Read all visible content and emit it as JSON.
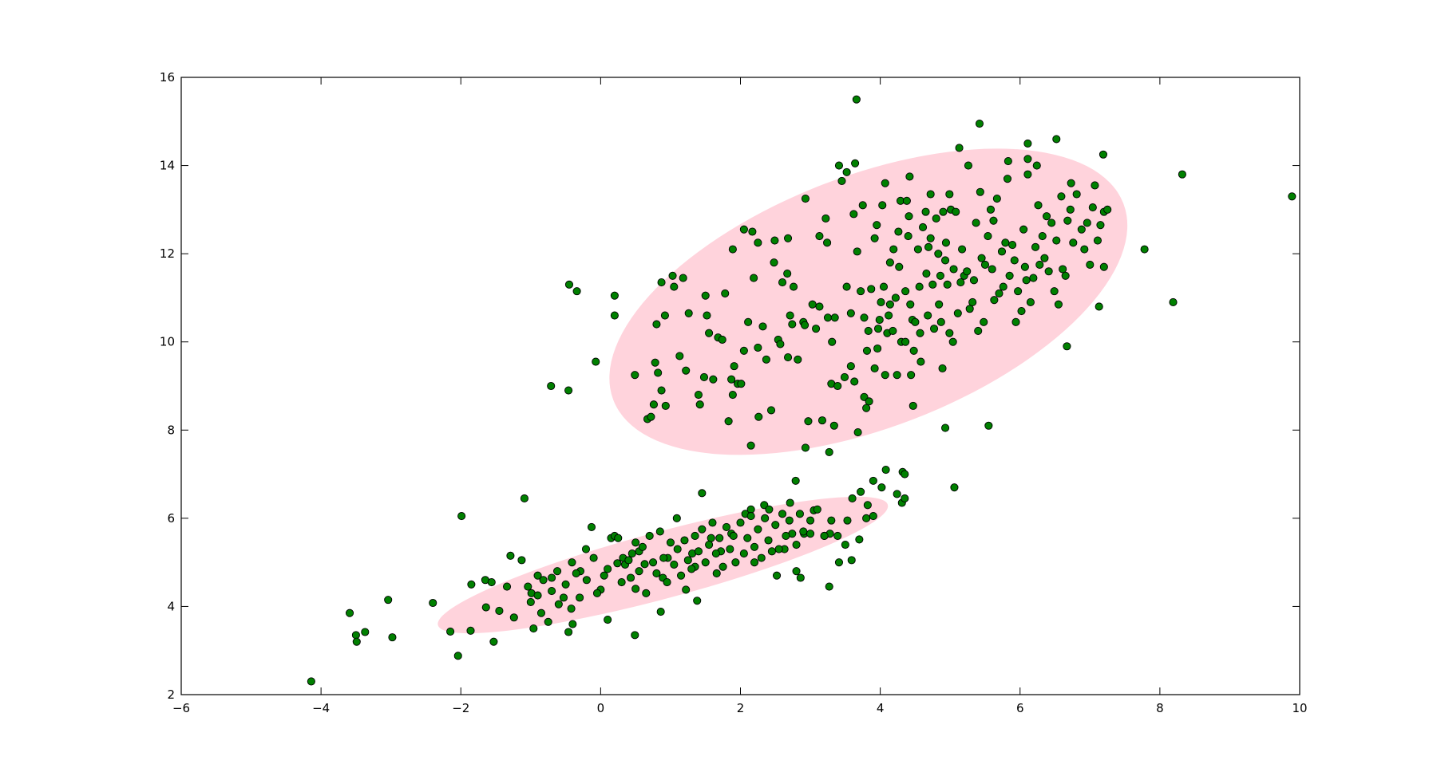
{
  "chart_data": {
    "type": "scatter",
    "color": "#008000",
    "edgecolor": "#000000",
    "ellipses": [
      {
        "center": [
          3.83,
          10.91
        ],
        "width": 8.8,
        "height": 5.07,
        "angle": 41.3,
        "color": "#ffd3dc"
      },
      {
        "center": [
          0.89,
          4.94
        ],
        "width": 7.0,
        "height": 1.44,
        "angle": 23.6,
        "color": "#ffd3dc"
      }
    ],
    "x": [
      -4.14,
      -3.59,
      -3.5,
      -3.49,
      -3.37,
      -3.04,
      -2.98,
      -2.4,
      -2.15,
      -2.04,
      -1.99,
      -1.86,
      -1.85,
      -1.65,
      -1.64,
      -1.53,
      -1.56,
      -1.45,
      -1.34,
      -1.29,
      -1.24,
      -1.13,
      -1.09,
      -1.04,
      -0.99,
      -0.96,
      -0.9,
      -0.82,
      -0.75,
      -0.71,
      -0.7,
      -0.62,
      -0.53,
      -0.46,
      -0.45,
      -0.42,
      -0.41,
      -0.34,
      -0.46,
      -0.29,
      -0.21,
      -0.13,
      -0.07,
      0,
      0.1,
      0.15,
      0.2,
      0.2,
      0.24,
      0.32,
      0.43,
      0.49,
      0.5,
      0.49,
      0.55,
      0.63,
      0.67,
      0.72,
      0.76,
      0.78,
      0.8,
      0.82,
      0.87,
      0.87,
      0.89,
      0.86,
      0.93,
      0.92,
      0.96,
      1.03,
      1.05,
      1.09,
      1.13,
      1.18,
      1.22,
      1.22,
      1.26,
      1.31,
      1.35,
      1.38,
      1.4,
      1.42,
      1.45,
      1.48,
      1.5,
      1.52,
      1.55,
      1.58,
      1.61,
      1.66,
      1.68,
      1.72,
      1.74,
      1.78,
      1.83,
      1.87,
      1.87,
      1.89,
      1.89,
      1.91,
      1.93,
      1.96,
      2.01,
      2.05,
      2.05,
      2.07,
      2.11,
      2.15,
      2.15,
      2.17,
      2.19,
      2.2,
      2.25,
      2.25,
      2.26,
      2.32,
      2.34,
      2.37,
      2.41,
      2.44,
      2.45,
      2.48,
      2.49,
      2.52,
      2.54,
      2.57,
      2.6,
      2.63,
      2.67,
      2.68,
      2.68,
      2.71,
      2.71,
      2.74,
      2.74,
      2.76,
      2.79,
      2.8,
      2.82,
      2.86,
      2.9,
      2.91,
      2.92,
      2.93,
      2.93,
      2.97,
      3.0,
      3.03,
      3.05,
      3.08,
      3.13,
      3.13,
      3.17,
      3.2,
      3.22,
      3.24,
      3.25,
      3.27,
      3.27,
      3.28,
      3.3,
      3.31,
      3.34,
      3.35,
      3.39,
      3.39,
      3.41,
      3.41,
      3.45,
      3.49,
      3.52,
      3.52,
      3.53,
      3.58,
      3.58,
      3.59,
      3.62,
      3.63,
      3.64,
      3.66,
      3.67,
      3.68,
      3.7,
      3.72,
      3.75,
      3.77,
      3.77,
      3.8,
      3.81,
      3.82,
      3.83,
      3.84,
      3.87,
      3.9,
      3.92,
      3.92,
      3.95,
      3.96,
      3.97,
      3.99,
      4.01,
      4.03,
      4.05,
      4.07,
      4.07,
      4.08,
      4.1,
      4.12,
      4.14,
      4.14,
      4.18,
      4.19,
      4.22,
      4.24,
      4.24,
      4.26,
      4.27,
      4.29,
      4.3,
      4.31,
      4.32,
      4.36,
      4.36,
      4.38,
      4.4,
      4.41,
      4.42,
      4.43,
      4.44,
      4.46,
      4.47,
      4.48,
      4.5,
      4.54,
      4.56,
      4.57,
      4.58,
      4.61,
      4.65,
      4.66,
      4.68,
      4.69,
      4.72,
      4.72,
      4.75,
      4.77,
      4.8,
      4.83,
      4.84,
      4.86,
      4.87,
      4.89,
      4.9,
      4.93,
      4.93,
      4.94,
      4.96,
      4.99,
      4.99,
      5.01,
      5.04,
      5.05,
      5.08,
      5.11,
      5.13,
      5.15,
      5.17,
      5.2,
      5.24,
      5.26,
      5.28,
      5.32,
      5.34,
      5.37,
      5.4,
      5.42,
      5.43,
      5.45,
      5.48,
      5.5,
      5.54,
      5.58,
      5.6,
      5.62,
      5.63,
      5.67,
      5.7,
      5.74,
      5.76,
      5.79,
      5.82,
      5.83,
      5.85,
      5.89,
      5.92,
      5.94,
      5.97,
      6.02,
      6.05,
      6.07,
      6.09,
      6.11,
      6.15,
      6.19,
      6.22,
      6.26,
      6.28,
      6.32,
      6.35,
      6.38,
      6.41,
      6.45,
      6.49,
      6.52,
      6.55,
      6.59,
      6.61,
      6.65,
      6.68,
      6.72,
      6.76,
      6.81,
      6.88,
      6.92,
      6.96,
      7.0,
      7.04,
      7.07,
      7.11,
      7.15,
      7.2,
      7.25,
      6.24,
      6.11,
      6.52,
      6.11,
      6.73,
      7.13,
      7.2,
      7.19,
      7.78,
      8.32,
      8.19,
      9.89,
      6.67,
      5.55,
      5.06,
      4.35,
      4.35,
      4.02,
      3.72,
      -1.0,
      -0.9,
      -0.85,
      -0.7,
      -0.6,
      -0.5,
      -0.4,
      -0.35,
      -0.3,
      -0.2,
      -0.1,
      -0.05,
      0.05,
      0.1,
      0.2,
      0.25,
      0.3,
      0.35,
      0.4,
      0.45,
      0.5,
      0.55,
      0.6,
      0.65,
      0.7,
      0.75,
      0.8,
      0.85,
      0.9,
      0.95,
      1.0,
      1.05,
      1.1,
      1.15,
      1.2,
      1.25,
      1.3,
      1.35,
      1.4,
      1.45,
      1.5,
      1.55,
      1.6,
      1.65,
      1.7,
      1.75,
      1.8,
      1.85,
      1.9,
      2.0,
      2.05,
      2.1,
      2.15,
      2.2,
      2.25,
      2.3,
      2.35,
      2.4,
      2.5,
      2.55,
      2.6,
      2.65,
      2.7,
      2.8,
      2.85,
      2.9,
      3.0,
      3.1,
      3.3,
      3.5,
      3.6,
      3.8,
      3.9,
      3.2
    ],
    "values": [
      2.3,
      3.85,
      3.35,
      3.2,
      3.42,
      4.15,
      3.3,
      4.08,
      3.43,
      2.88,
      6.05,
      3.45,
      4.5,
      4.6,
      3.98,
      3.2,
      4.55,
      3.9,
      4.45,
      5.15,
      3.75,
      5.05,
      6.45,
      4.45,
      4.3,
      3.5,
      4.7,
      4.6,
      3.65,
      9.0,
      4.35,
      4.8,
      4.2,
      3.42,
      11.3,
      3.95,
      5.0,
      11.15,
      8.9,
      4.8,
      5.3,
      5.8,
      9.55,
      4.38,
      3.7,
      5.55,
      11.05,
      10.6,
      4.98,
      5.1,
      4.65,
      9.25,
      5.45,
      3.35,
      5.25,
      4.96,
      8.25,
      8.3,
      8.58,
      9.53,
      10.4,
      9.3,
      11.35,
      8.9,
      4.65,
      3.88,
      8.55,
      10.6,
      5.1,
      11.5,
      11.25,
      6.0,
      9.68,
      11.45,
      4.38,
      9.35,
      10.65,
      5.2,
      4.9,
      4.13,
      8.8,
      8.58,
      6.57,
      9.2,
      11.05,
      10.6,
      10.2,
      5.55,
      9.15,
      4.75,
      10.1,
      5.25,
      10.05,
      11.1,
      8.2,
      9.15,
      5.65,
      12.1,
      8.8,
      9.45,
      5.0,
      9.05,
      9.05,
      12.55,
      9.8,
      6.1,
      10.45,
      7.65,
      6.2,
      12.5,
      11.45,
      5.0,
      12.25,
      9.87,
      8.3,
      10.35,
      6.3,
      9.6,
      6.2,
      8.45,
      5.25,
      11.8,
      12.3,
      4.7,
      10.05,
      9.95,
      11.35,
      5.3,
      11.55,
      12.35,
      9.65,
      10.6,
      6.35,
      10.4,
      5.65,
      11.25,
      6.85,
      4.8,
      9.6,
      4.65,
      10.45,
      5.65,
      10.38,
      13.25,
      7.6,
      8.2,
      5.65,
      10.85,
      6.18,
      10.3,
      10.8,
      12.4,
      8.22,
      5.6,
      12.8,
      12.25,
      10.55,
      7.5,
      4.45,
      5.65,
      9.05,
      10.0,
      8.1,
      10.55,
      5.6,
      9.0,
      14.0,
      5.0,
      13.65,
      9.2,
      13.85,
      11.25,
      5.95,
      10.65,
      9.45,
      5.05,
      12.9,
      9.1,
      14.05,
      15.5,
      12.05,
      7.95,
      5.52,
      11.15,
      13.1,
      8.75,
      10.55,
      8.5,
      9.8,
      6.3,
      10.25,
      8.65,
      11.2,
      6.85,
      12.35,
      9.4,
      12.65,
      9.85,
      10.3,
      10.5,
      10.9,
      13.1,
      11.25,
      13.6,
      9.25,
      7.1,
      10.2,
      10.6,
      11.8,
      10.85,
      10.25,
      12.1,
      11.0,
      6.55,
      9.25,
      12.5,
      11.7,
      13.2,
      10.0,
      6.35,
      7.05,
      11.15,
      10.0,
      13.2,
      12.4,
      12.85,
      13.75,
      10.85,
      9.25,
      10.5,
      8.55,
      9.8,
      10.45,
      12.1,
      11.25,
      10.2,
      9.55,
      12.6,
      12.95,
      11.55,
      10.6,
      12.15,
      12.35,
      13.35,
      11.3,
      10.3,
      12.8,
      12.0,
      10.85,
      11.5,
      10.45,
      9.4,
      12.95,
      11.85,
      8.05,
      12.25,
      11.3,
      10.2,
      13.35,
      13.0,
      10.0,
      11.65,
      12.95,
      10.65,
      14.4,
      11.35,
      12.1,
      11.5,
      11.6,
      14.0,
      10.75,
      10.9,
      11.4,
      12.7,
      10.25,
      14.95,
      13.4,
      11.9,
      10.45,
      11.75,
      12.4,
      13.0,
      11.65,
      12.75,
      10.95,
      13.25,
      11.1,
      12.05,
      11.25,
      12.25,
      13.7,
      14.1,
      11.5,
      12.2,
      11.85,
      10.45,
      11.15,
      10.7,
      12.55,
      11.7,
      11.4,
      13.8,
      10.9,
      11.45,
      12.15,
      13.1,
      11.75,
      12.4,
      11.9,
      12.85,
      11.6,
      12.7,
      11.15,
      12.3,
      10.85,
      13.3,
      11.65,
      11.5,
      12.75,
      13.0,
      12.25,
      13.35,
      12.55,
      12.1,
      12.7,
      11.75,
      13.05,
      13.55,
      12.3,
      12.65,
      12.95,
      13.0,
      14.0,
      14.15,
      14.6,
      14.5,
      13.6,
      10.8,
      11.7,
      14.25,
      12.1,
      13.8,
      10.9,
      13.3,
      9.9,
      8.1,
      6.7,
      7.0,
      6.45,
      6.7,
      6.6,
      4.1,
      4.25,
      3.85,
      4.65,
      4.05,
      4.5,
      3.6,
      4.75,
      4.2,
      4.6,
      5.1,
      4.3,
      4.7,
      4.85,
      5.6,
      5.55,
      4.55,
      4.95,
      5.05,
      5.2,
      4.4,
      4.8,
      5.35,
      4.3,
      5.6,
      5.0,
      4.75,
      5.7,
      5.1,
      4.55,
      5.45,
      4.95,
      5.3,
      4.7,
      5.5,
      5.05,
      4.85,
      5.6,
      5.25,
      5.75,
      5.0,
      5.4,
      5.9,
      5.2,
      5.55,
      4.9,
      5.8,
      5.3,
      5.6,
      5.9,
      5.2,
      5.55,
      6.05,
      5.35,
      5.75,
      5.1,
      6.0,
      5.5,
      5.85,
      5.3,
      6.1,
      5.6,
      5.95,
      5.4,
      6.1,
      5.7,
      5.95,
      6.2,
      5.95,
      5.4,
      6.45,
      6.0,
      6.05,
      5.6
    ],
    "xlim": [
      -6,
      10
    ],
    "ylim": [
      2,
      16
    ],
    "xticks": [
      {
        "value": -6,
        "label": "−6"
      },
      {
        "value": -4,
        "label": "−4"
      },
      {
        "value": -2,
        "label": "−2"
      },
      0,
      2,
      4,
      6,
      8,
      10
    ],
    "yticks": [
      2,
      4,
      6,
      8,
      10,
      12,
      14,
      16
    ],
    "grid": false
  }
}
